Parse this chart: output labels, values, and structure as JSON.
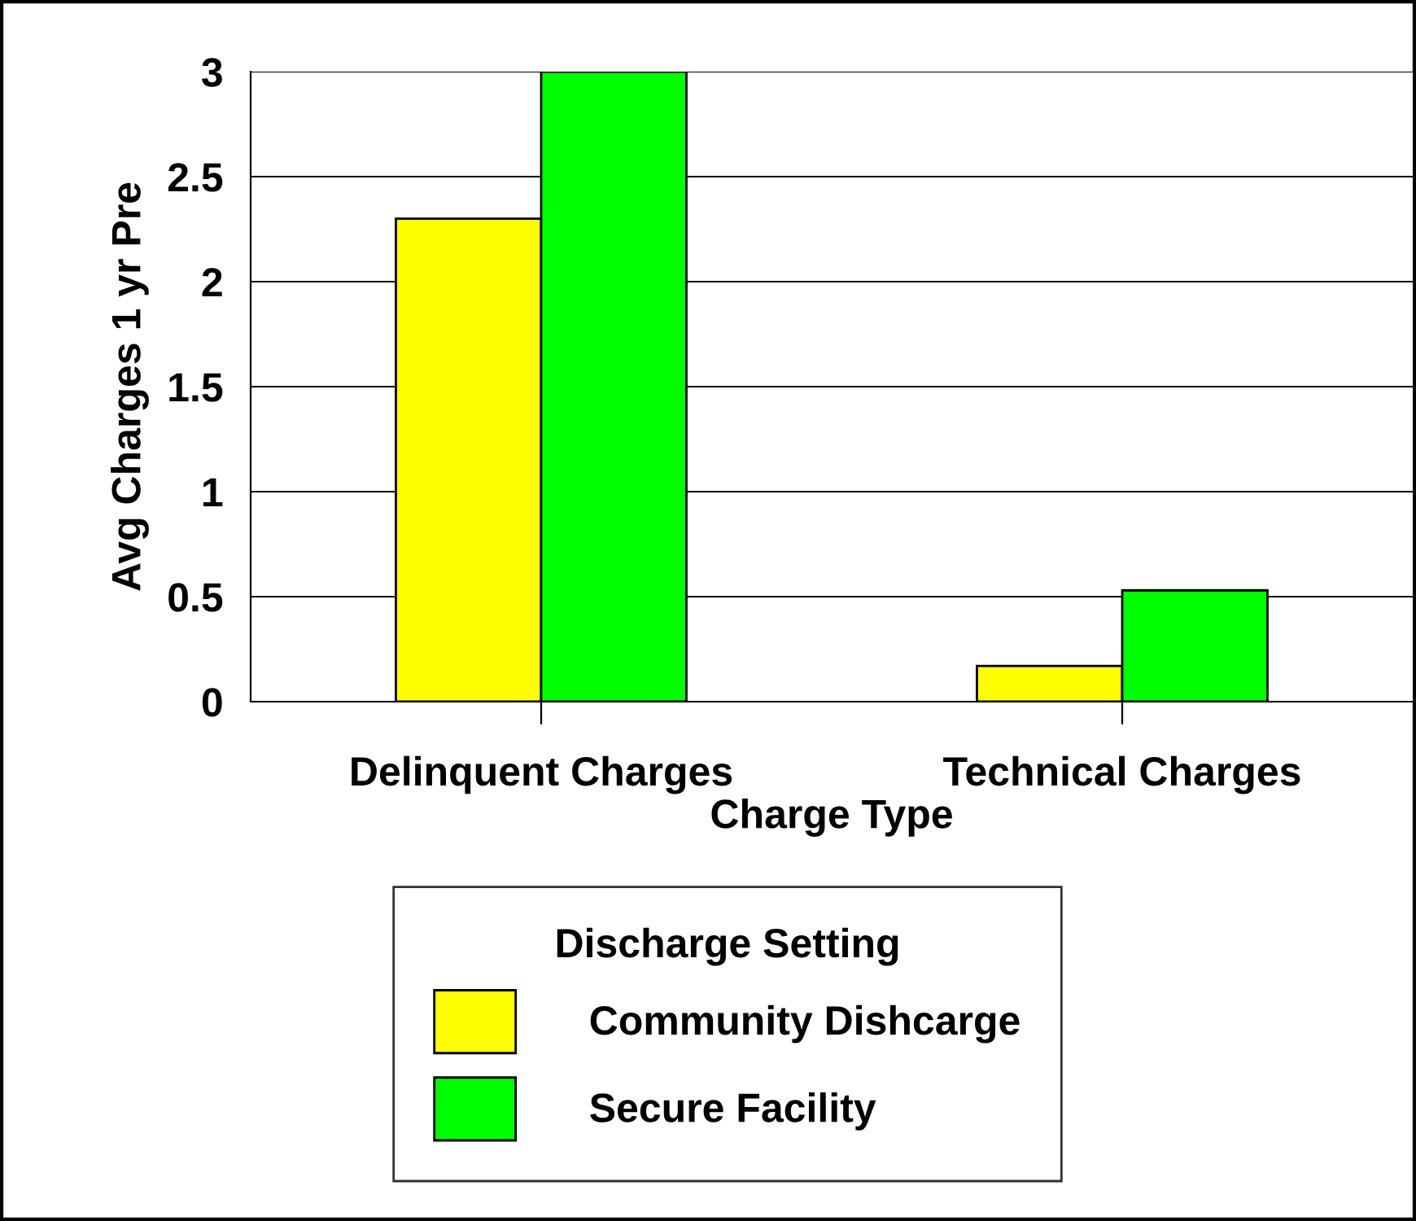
{
  "chart_data": {
    "type": "bar",
    "xlabel": "Charge Type",
    "ylabel": "Avg Charges 1 yr Pre",
    "legend_title": "Discharge Setting",
    "categories": [
      "Delinquent Charges",
      "Technical Charges"
    ],
    "series": [
      {
        "name": "Community Dishcarge",
        "color": "#ffff00",
        "values": [
          2.3,
          0.17
        ]
      },
      {
        "name": "Secure Facility",
        "color": "#00ff00",
        "values": [
          3.0,
          0.53
        ]
      }
    ],
    "ylim": [
      0,
      3
    ],
    "yticks": [
      0,
      0.5,
      1,
      1.5,
      2,
      2.5,
      3
    ],
    "grid": "y",
    "legend": "bottom"
  }
}
